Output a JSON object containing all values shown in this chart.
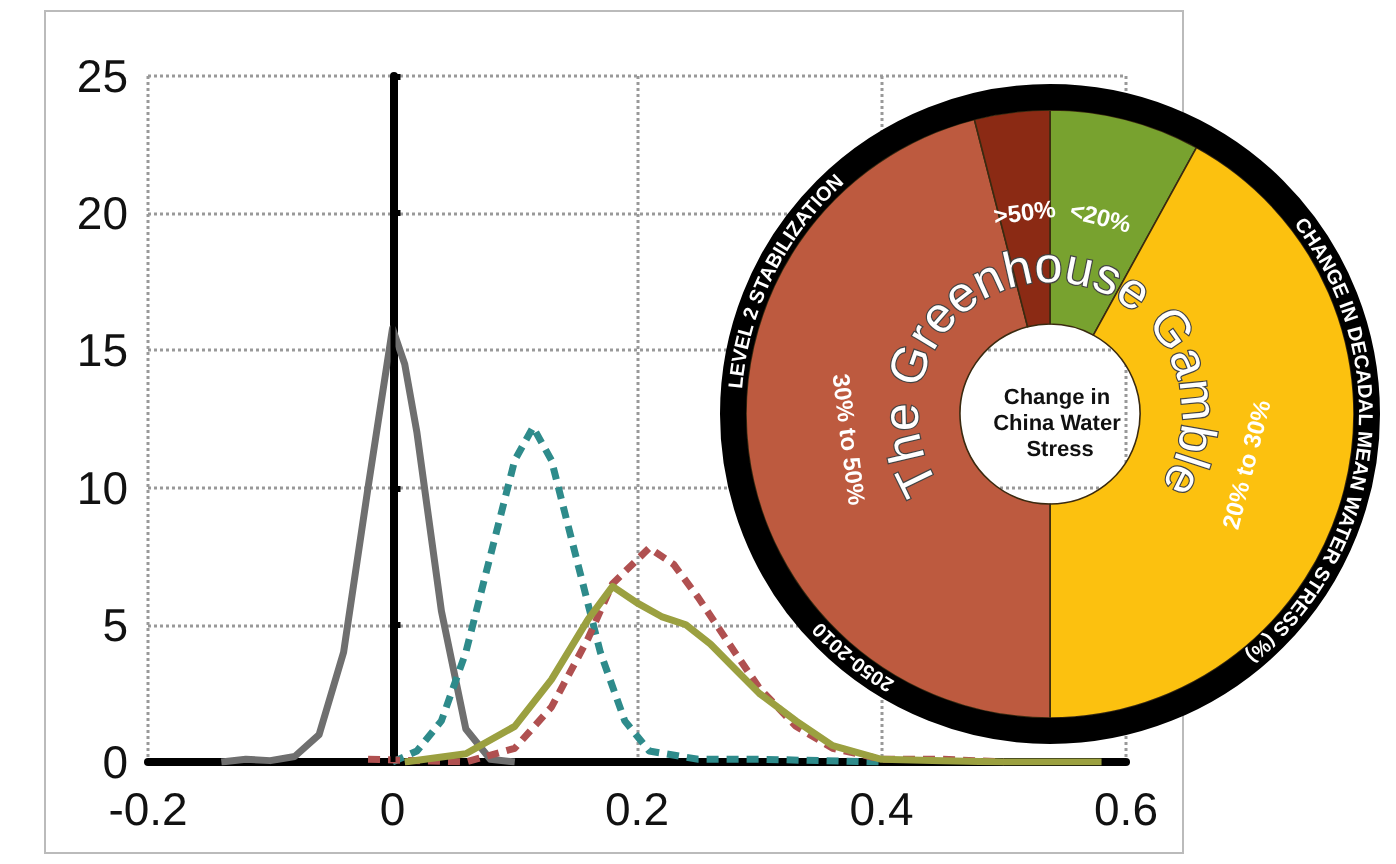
{
  "chart_data": [
    {
      "type": "line",
      "xlim": [
        -0.2,
        0.6
      ],
      "xticks": [
        -0.2,
        0,
        0.2,
        0.4,
        0.6
      ],
      "ylim": [
        0,
        25
      ],
      "yticks": [
        0,
        5,
        10,
        15,
        20,
        25
      ],
      "grid": true,
      "marker": "none",
      "ref_lines": [
        {
          "axis": "x",
          "value": 0,
          "color": "#000000",
          "line_style": "solid"
        }
      ],
      "series": [
        {
          "color": "#6f6f6f",
          "line_style": "solid",
          "x": [
            -0.14,
            -0.12,
            -0.1,
            -0.08,
            -0.06,
            -0.04,
            -0.02,
            0,
            0.01,
            0.02,
            0.04,
            0.06,
            0.08,
            0.1
          ],
          "values": [
            0,
            0.1,
            0.05,
            0.2,
            1,
            4,
            10,
            15.8,
            14.5,
            12,
            5.5,
            1.2,
            0.1,
            0
          ]
        },
        {
          "color": "#2e8b8b",
          "line_style": "dashed",
          "x": [
            0,
            0.02,
            0.04,
            0.06,
            0.08,
            0.1,
            0.115,
            0.13,
            0.15,
            0.17,
            0.19,
            0.21,
            0.25,
            0.3,
            0.35,
            0.4
          ],
          "values": [
            0,
            0.4,
            1.5,
            4,
            7.5,
            11,
            12.2,
            11,
            7.5,
            4,
            1.5,
            0.4,
            0.1,
            0.1,
            0.05,
            0
          ]
        },
        {
          "color": "#b05050",
          "line_style": "dashed",
          "x": [
            -0.02,
            0.06,
            0.1,
            0.13,
            0.16,
            0.18,
            0.21,
            0.23,
            0.25,
            0.28,
            0.3,
            0.33,
            0.36,
            0.4,
            0.45,
            0.5
          ],
          "values": [
            0.1,
            0,
            0.5,
            2,
            4.5,
            6.5,
            7.8,
            7.2,
            6,
            4,
            2.7,
            1.3,
            0.5,
            0.1,
            0.1,
            0
          ]
        },
        {
          "color": "#9ba040",
          "line_style": "solid",
          "x": [
            0.01,
            0.06,
            0.1,
            0.13,
            0.16,
            0.18,
            0.2,
            0.22,
            0.24,
            0.26,
            0.28,
            0.3,
            0.33,
            0.36,
            0.4,
            0.45,
            0.5,
            0.58
          ],
          "values": [
            0,
            0.3,
            1.3,
            3,
            5.2,
            6.4,
            5.8,
            5.3,
            5,
            4.3,
            3.4,
            2.5,
            1.5,
            0.6,
            0.1,
            0.05,
            0,
            0
          ]
        }
      ]
    },
    {
      "type": "donut",
      "title": "Change in China Water Stress",
      "legend": false,
      "categories": [
        "<20%",
        "20% to 30%",
        "30% to 50%",
        ">50%"
      ],
      "values": [
        8,
        42,
        46,
        4
      ],
      "colors": [
        "#78a22f",
        "#fcc10f",
        "#bd5a3f",
        "#8b2a14"
      ],
      "annotations": [
        "LEVEL 2 STABILIZATION",
        "CHANGE IN DECADAL MEAN WATER STRESS (%)",
        "2050-2010",
        "The Greenhouse Gamble"
      ]
    }
  ]
}
